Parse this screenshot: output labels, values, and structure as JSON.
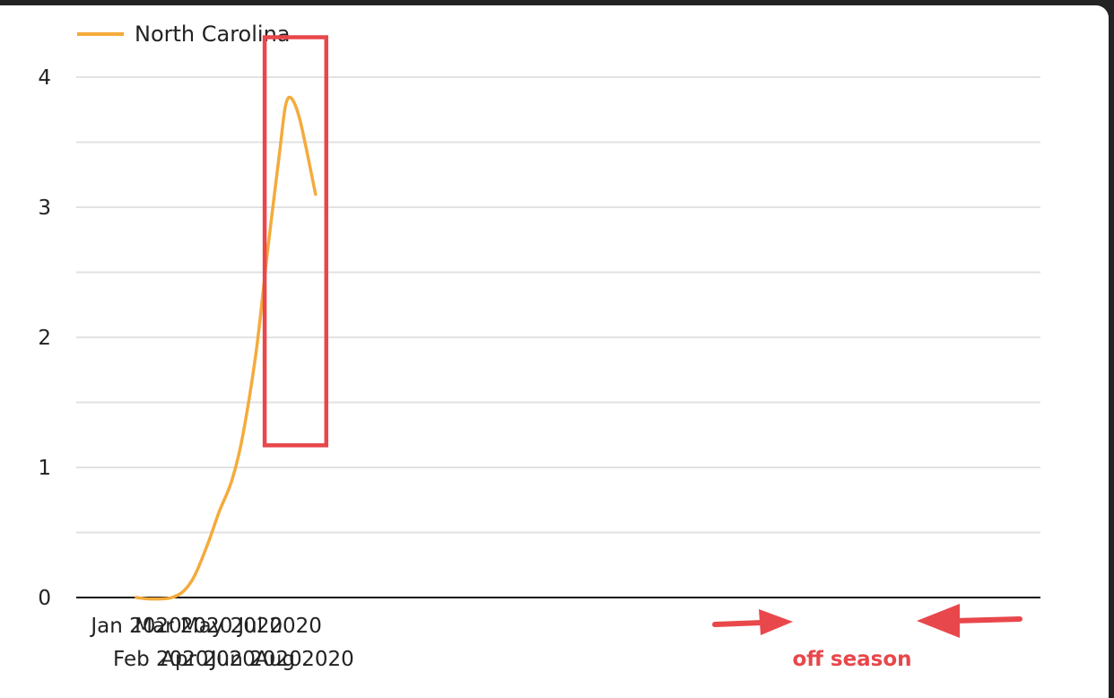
{
  "chart_data": {
    "type": "line",
    "title": "",
    "xlabel": "",
    "ylabel": "",
    "x_ticks": [
      "Jan 2020",
      "Feb 2020",
      "Mar 2020",
      "Apr 2020",
      "May 2020",
      "Jun 2020",
      "Jul 2020",
      "Aug 2020"
    ],
    "y_ticks": [
      "0",
      "1",
      "2",
      "3",
      "4"
    ],
    "ylim": [
      0,
      4.2
    ],
    "grid": true,
    "legend": "top-left",
    "series": [
      {
        "name": "North Carolina",
        "color": "#f4ab3c",
        "points": [
          [
            "2020-01-01",
            0.0
          ],
          [
            "2020-01-15",
            -0.01
          ],
          [
            "2020-02-01",
            -0.01
          ],
          [
            "2020-02-15",
            0.0
          ],
          [
            "2020-03-01",
            0.05
          ],
          [
            "2020-03-15",
            0.17
          ],
          [
            "2020-04-01",
            0.42
          ],
          [
            "2020-04-15",
            0.66
          ],
          [
            "2020-05-01",
            0.9
          ],
          [
            "2020-05-15",
            1.25
          ],
          [
            "2020-06-01",
            1.9
          ],
          [
            "2020-06-15",
            2.65
          ],
          [
            "2020-07-01",
            3.45
          ],
          [
            "2020-07-08",
            3.78
          ],
          [
            "2020-07-15",
            3.84
          ],
          [
            "2020-07-25",
            3.7
          ],
          [
            "2020-08-05",
            3.4
          ],
          [
            "2020-08-15",
            3.1
          ]
        ]
      }
    ],
    "annotations": {
      "highlight_box": {
        "x_start": "2020-06-15",
        "x_end": "2020-08-15",
        "y_start": 1.17,
        "y_end": 4.3,
        "color": "#e8474b"
      },
      "label": "off season",
      "color": "#e8474b"
    }
  }
}
